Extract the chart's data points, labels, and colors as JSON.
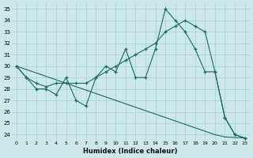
{
  "title": "",
  "xlabel": "Humidex (Indice chaleur)",
  "background_color": "#cce8e8",
  "grid_color": "#a8d0d0",
  "line_color": "#1a6b5a",
  "xlim": [
    -0.5,
    23.5
  ],
  "ylim": [
    23.5,
    35.5
  ],
  "xticks": [
    0,
    1,
    2,
    3,
    4,
    5,
    6,
    7,
    8,
    9,
    10,
    11,
    12,
    13,
    14,
    15,
    16,
    17,
    18,
    19,
    20,
    21,
    22,
    23
  ],
  "yticks": [
    24,
    25,
    26,
    27,
    28,
    29,
    30,
    31,
    32,
    33,
    34,
    35
  ],
  "series1": [
    30,
    29,
    28,
    28,
    27.5,
    29,
    27,
    26.5,
    29,
    30,
    29.5,
    31.5,
    29,
    29,
    31.5,
    35,
    34,
    33,
    31.5,
    29.5,
    29.5,
    25.5,
    24,
    23.7
  ],
  "series2": [
    30,
    29,
    28.5,
    28.2,
    28.5,
    28.5,
    28.5,
    28.5,
    29,
    29.5,
    30,
    30.5,
    31,
    31.5,
    32,
    33,
    33.5,
    34,
    33.5,
    33,
    29.5,
    25.5,
    24.0,
    23.7
  ],
  "series3": [
    30,
    29.7,
    29.4,
    29.1,
    28.8,
    28.5,
    28.2,
    27.9,
    27.6,
    27.3,
    27.0,
    26.7,
    26.4,
    26.1,
    25.8,
    25.5,
    25.2,
    24.9,
    24.6,
    24.3,
    24.0,
    23.8,
    23.75,
    23.7
  ]
}
